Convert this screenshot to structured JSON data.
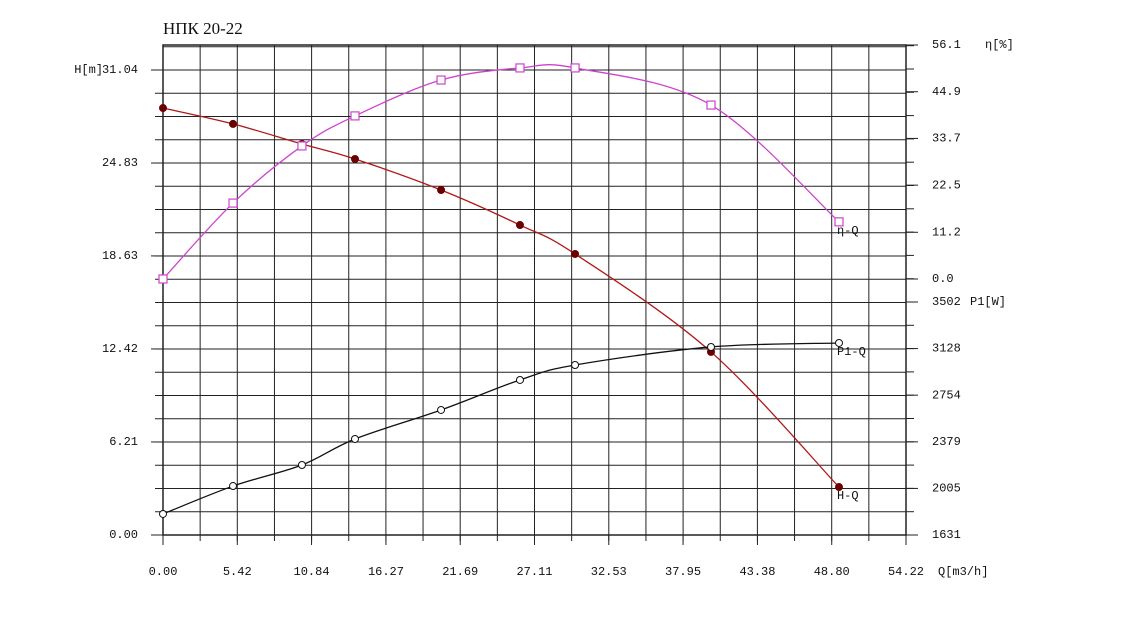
{
  "chart_data": {
    "type": "line",
    "title": "НПК 20-22",
    "xlabel": "Q[m3/h]",
    "ylabel": "H[m]",
    "y2label": "η[%]",
    "y3label": "P1[W]",
    "xlim": [
      0,
      54.22
    ],
    "xticks": [
      {
        "value": 0,
        "label": "0.00"
      },
      5.42,
      10.84,
      16.27,
      21.69,
      27.11,
      32.53,
      37.95,
      43.38,
      {
        "value": 48.8,
        "label": "48.80"
      },
      54.22
    ],
    "ylim": [
      0,
      31.04
    ],
    "yticks": [
      {
        "value": 0,
        "label": "0.00"
      },
      6.21,
      12.42,
      18.63,
      24.83,
      31.04
    ],
    "y2lim": [
      0,
      56.1
    ],
    "y2ticks": [
      {
        "value": 0,
        "label": "0.0"
      },
      11.2,
      22.5,
      33.7,
      44.9,
      56.1
    ],
    "y3lim": [
      1631,
      3502
    ],
    "y3ticks": [
      1631,
      2005,
      2379,
      2754,
      3128,
      3502
    ],
    "grid": true,
    "x": [
      0,
      5.11,
      10.14,
      14.01,
      20.29,
      26.05,
      30.07,
      39.99,
      49.33
    ],
    "series": [
      {
        "name": "H-Q",
        "color": "#b01818",
        "marker_color": "#6a0000",
        "marker": "dot",
        "axis": "y",
        "values": [
          28.5,
          27.44,
          26.1,
          25.1,
          23.03,
          20.69,
          18.76,
          12.22,
          3.2
        ]
      },
      {
        "name": "η-Q",
        "color": "#cc44cc",
        "marker_color": "#cc44cc",
        "marker": "square",
        "axis": "y2",
        "values": [
          0,
          18.2,
          31.9,
          39.1,
          47.7,
          50.6,
          50.6,
          41.7,
          13.7
        ]
      },
      {
        "name": "P1-Q",
        "color": "#111111",
        "marker_color": "#111111",
        "marker": "circle",
        "axis": "y3",
        "values": [
          1800,
          2024,
          2193,
          2402,
          2635,
          2876,
          2996,
          3141,
          3173
        ]
      }
    ]
  }
}
